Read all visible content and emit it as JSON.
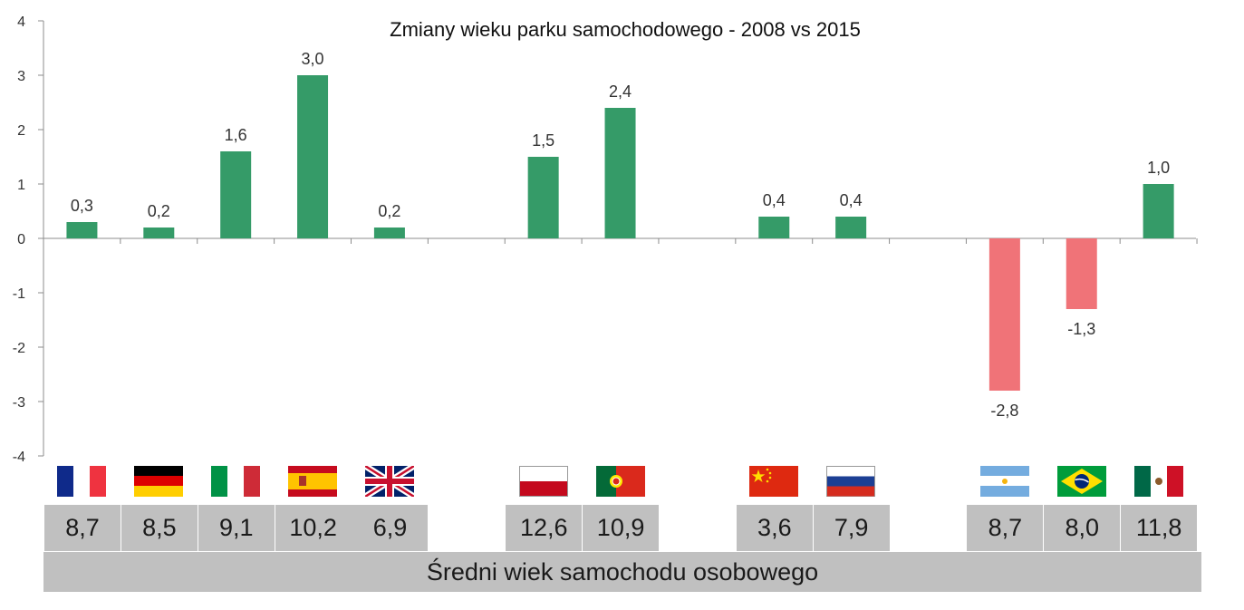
{
  "chart_data": {
    "type": "bar",
    "title": "Zmiany wieku parku samochodowego - 2008 vs 2015",
    "ylim": [
      -4,
      4
    ],
    "yticks": [
      4,
      3,
      2,
      1,
      0,
      -1,
      -2,
      -3,
      -4
    ],
    "grid": false,
    "categories": [
      "Francja",
      "Niemcy",
      "Włochy",
      "Hiszpania",
      "Wielka Brytania",
      "",
      "Polska",
      "Portugalia",
      "",
      "Chiny",
      "Rosja",
      "",
      "Argentyna",
      "Brazylia",
      "Meksyk"
    ],
    "values": [
      0.3,
      0.2,
      1.6,
      3.0,
      0.2,
      null,
      1.5,
      2.4,
      null,
      0.4,
      0.4,
      null,
      -2.8,
      -1.3,
      1.0
    ],
    "value_labels": [
      "0,3",
      "0,2",
      "1,6",
      "3,0",
      "0,2",
      "",
      "1,5",
      "2,4",
      "",
      "0,4",
      "0,4",
      "",
      "-2,8",
      "-1,3",
      "1,0"
    ],
    "positive_color": "#359b68",
    "negative_color": "#f07378"
  },
  "table": {
    "average_age": [
      "8,7",
      "8,5",
      "9,1",
      "10,2",
      "6,9",
      "",
      "12,6",
      "10,9",
      "",
      "3,6",
      "7,9",
      "",
      "8,7",
      "8,0",
      "11,8"
    ],
    "footer_label": "Średni wiek samochodu osobowego"
  },
  "flags": [
    "france-flag-icon",
    "germany-flag-icon",
    "italy-flag-icon",
    "spain-flag-icon",
    "uk-flag-icon",
    "",
    "poland-flag-icon",
    "portugal-flag-icon",
    "",
    "china-flag-icon",
    "russia-flag-icon",
    "",
    "argentina-flag-icon",
    "brazil-flag-icon",
    "mexico-flag-icon"
  ]
}
